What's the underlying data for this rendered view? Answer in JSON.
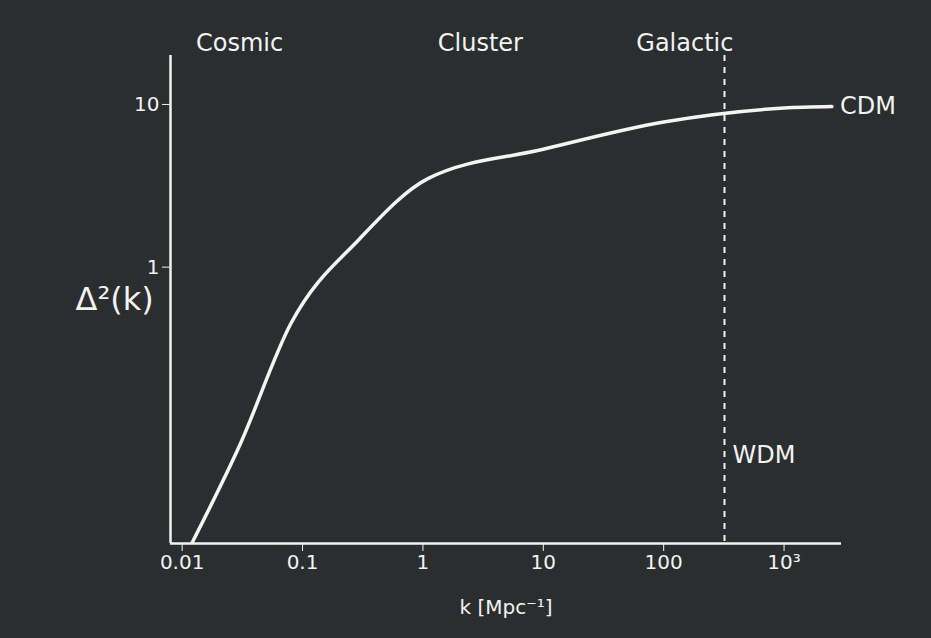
{
  "chart_data": {
    "type": "line",
    "x_label": "k [Mpc⁻¹]",
    "y_label": "Δ²(k)",
    "log": true,
    "x": [
      0.012,
      0.03,
      0.08,
      0.3,
      1.1,
      10,
      100,
      1000,
      2500
    ],
    "series": [
      {
        "name": "CDM",
        "color": "#f4f4f4",
        "values": [
          0.02,
          0.08,
          0.45,
          1.5,
          3.5,
          5.3,
          7.8,
          9.5,
          9.7
        ]
      }
    ],
    "xlim": [
      0.008,
      3000
    ],
    "ylim": [
      0.02,
      20
    ],
    "xticks": [
      0.01,
      0.1,
      1,
      10,
      100,
      {
        "value": 1000,
        "label": "10³"
      }
    ],
    "yticks": [
      1,
      10
    ],
    "regions": [
      {
        "label": "Cosmic",
        "x": 0.03
      },
      {
        "label": "Cluster",
        "x": 3
      },
      {
        "label": "Galactic",
        "x": 150
      }
    ],
    "annotations": [
      {
        "text": "WDM",
        "x": 320,
        "y": 0.07,
        "line_style": "dashed"
      }
    ]
  }
}
